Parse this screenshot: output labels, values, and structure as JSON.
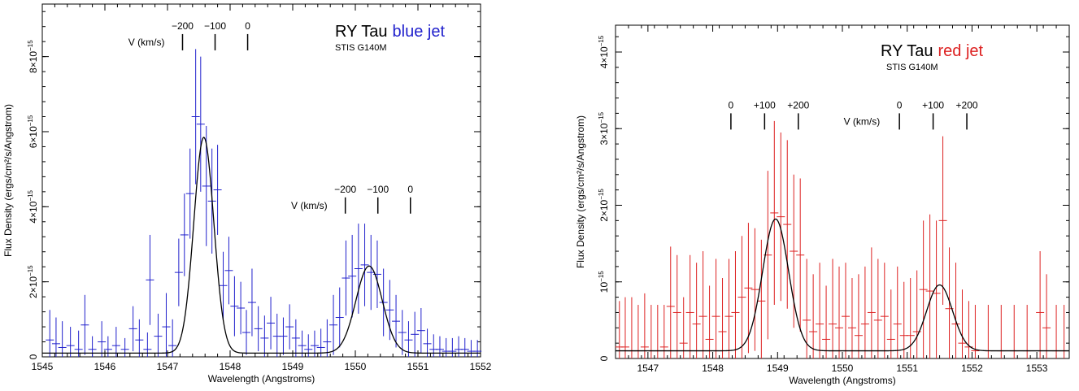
{
  "chart_data": [
    {
      "type": "scatter",
      "id": "left",
      "title_prefix": "RY Tau",
      "title_suffix": "blue jet",
      "subtitle": "STIS G140M",
      "xlabel": "Wavelength (Angstroms)",
      "ylabel": "Flux Density (ergs/cm²/s/Angstrom)",
      "xlim": [
        1545,
        1552
      ],
      "ylim": [
        0,
        9.4e-15
      ],
      "x_ticks": [
        1545,
        1546,
        1547,
        1548,
        1549,
        1550,
        1551,
        1552
      ],
      "x_tick_labels": [
        "1545",
        "1546",
        "1547",
        "1548",
        "1549",
        "1550",
        "1551",
        "1552"
      ],
      "y_ticks": [
        0,
        2e-15,
        4e-15,
        6e-15,
        8e-15
      ],
      "y_tick_labels": [
        {
          "mantissa": "0",
          "exp": ""
        },
        {
          "mantissa": "2×10",
          "exp": "−15"
        },
        {
          "mantissa": "4×10",
          "exp": "−15"
        },
        {
          "mantissa": "6×10",
          "exp": "−15"
        },
        {
          "mantissa": "8×10",
          "exp": "−15"
        }
      ],
      "color": "#2020cc",
      "model": {
        "baseline": 1e-16,
        "peaks": [
          {
            "center": 1547.58,
            "amp": 5.75e-15,
            "sigma": 0.16
          },
          {
            "center": 1550.22,
            "amp": 2.32e-15,
            "sigma": 0.21
          }
        ]
      },
      "velocity_markers": [
        {
          "label_text": "V (km/s)",
          "labels": [
            "−200",
            "−100",
            "0"
          ],
          "wavelengths": [
            1547.24,
            1547.76,
            1548.28
          ],
          "level": 8.6e-15
        },
        {
          "label_text": "V (km/s)",
          "labels": [
            "−200",
            "−100",
            "0"
          ],
          "wavelengths": [
            1549.84,
            1550.36,
            1550.88
          ],
          "level": 4.25e-15
        }
      ],
      "points": [
        {
          "x": 1545.12,
          "y": 4.5e-16,
          "err": 8e-16
        },
        {
          "x": 1545.22,
          "y": 3.5e-16,
          "err": 7e-16
        },
        {
          "x": 1545.32,
          "y": 2.5e-16,
          "err": 7e-16
        },
        {
          "x": 1545.45,
          "y": 3e-16,
          "err": 5e-16
        },
        {
          "x": 1545.58,
          "y": 2e-16,
          "err": 5e-16
        },
        {
          "x": 1545.68,
          "y": 8.5e-16,
          "err": 8e-16
        },
        {
          "x": 1545.8,
          "y": 2e-16,
          "err": 3.5e-16
        },
        {
          "x": 1545.95,
          "y": 4e-16,
          "err": 5.5e-16
        },
        {
          "x": 1546.05,
          "y": 2e-16,
          "err": 3.5e-16
        },
        {
          "x": 1546.18,
          "y": 3e-16,
          "err": 5e-16
        },
        {
          "x": 1546.32,
          "y": 2e-16,
          "err": 3e-16
        },
        {
          "x": 1546.45,
          "y": 7.5e-16,
          "err": 6e-16
        },
        {
          "x": 1546.55,
          "y": 4.5e-16,
          "err": 5.5e-16
        },
        {
          "x": 1546.68,
          "y": 2e-16,
          "err": 4.5e-16
        },
        {
          "x": 1546.72,
          "y": 2.05e-15,
          "err": 1.2e-15
        },
        {
          "x": 1546.85,
          "y": 5.5e-16,
          "err": 6e-16
        },
        {
          "x": 1546.98,
          "y": 8e-16,
          "err": 9e-16
        },
        {
          "x": 1547.08,
          "y": 3e-16,
          "err": 7e-16
        },
        {
          "x": 1547.18,
          "y": 2.25e-15,
          "err": 9e-16
        },
        {
          "x": 1547.27,
          "y": 3.25e-15,
          "err": 1.1e-15
        },
        {
          "x": 1547.36,
          "y": 4.35e-15,
          "err": 1.2e-15
        },
        {
          "x": 1547.45,
          "y": 6.4e-15,
          "err": 1.8e-15
        },
        {
          "x": 1547.53,
          "y": 6.2e-15,
          "err": 1.8e-15
        },
        {
          "x": 1547.62,
          "y": 4.55e-15,
          "err": 1.6e-15
        },
        {
          "x": 1547.71,
          "y": 4.15e-15,
          "err": 1.4e-15
        },
        {
          "x": 1547.8,
          "y": 4.45e-15,
          "err": 1.2e-15
        },
        {
          "x": 1547.89,
          "y": 1.9e-15,
          "err": 9e-16
        },
        {
          "x": 1547.98,
          "y": 2.3e-15,
          "err": 9e-16
        },
        {
          "x": 1548.07,
          "y": 1.35e-15,
          "err": 8e-16
        },
        {
          "x": 1548.17,
          "y": 1.3e-15,
          "err": 7e-16
        },
        {
          "x": 1548.26,
          "y": 6.5e-16,
          "err": 6e-16
        },
        {
          "x": 1548.35,
          "y": 1.45e-15,
          "err": 9e-16
        },
        {
          "x": 1548.45,
          "y": 7.5e-16,
          "err": 6e-16
        },
        {
          "x": 1548.55,
          "y": 5e-16,
          "err": 6e-16
        },
        {
          "x": 1548.65,
          "y": 9e-16,
          "err": 7e-16
        },
        {
          "x": 1548.75,
          "y": 5.5e-16,
          "err": 6e-16
        },
        {
          "x": 1548.85,
          "y": 5.5e-16,
          "err": 5e-16
        },
        {
          "x": 1548.95,
          "y": 8e-16,
          "err": 6e-16
        },
        {
          "x": 1549.05,
          "y": 5e-16,
          "err": 5e-16
        },
        {
          "x": 1549.15,
          "y": 3e-16,
          "err": 4e-16
        },
        {
          "x": 1549.25,
          "y": 2e-16,
          "err": 4e-16
        },
        {
          "x": 1549.35,
          "y": 3e-16,
          "err": 4e-16
        },
        {
          "x": 1549.45,
          "y": 2.5e-16,
          "err": 5e-16
        },
        {
          "x": 1549.55,
          "y": 4e-16,
          "err": 6e-16
        },
        {
          "x": 1549.65,
          "y": 8.5e-16,
          "err": 8e-16
        },
        {
          "x": 1549.75,
          "y": 1.05e-15,
          "err": 8e-16
        },
        {
          "x": 1549.85,
          "y": 2.1e-15,
          "err": 1e-15
        },
        {
          "x": 1549.95,
          "y": 2.15e-15,
          "err": 1.1e-15
        },
        {
          "x": 1550.05,
          "y": 2.35e-15,
          "err": 1.2e-15
        },
        {
          "x": 1550.15,
          "y": 2.45e-15,
          "err": 1.1e-15
        },
        {
          "x": 1550.25,
          "y": 2.25e-15,
          "err": 1e-15
        },
        {
          "x": 1550.35,
          "y": 2.2e-15,
          "err": 9e-16
        },
        {
          "x": 1550.45,
          "y": 1.45e-15,
          "err": 9e-16
        },
        {
          "x": 1550.55,
          "y": 1.25e-15,
          "err": 8e-16
        },
        {
          "x": 1550.65,
          "y": 9.5e-16,
          "err": 7e-16
        },
        {
          "x": 1550.75,
          "y": 6.5e-16,
          "err": 6e-16
        },
        {
          "x": 1550.85,
          "y": 4.5e-16,
          "err": 5e-16
        },
        {
          "x": 1550.95,
          "y": 6e-16,
          "err": 6e-16
        },
        {
          "x": 1551.05,
          "y": 7e-16,
          "err": 6e-16
        },
        {
          "x": 1551.15,
          "y": 3.5e-16,
          "err": 4e-16
        },
        {
          "x": 1551.25,
          "y": 2e-16,
          "err": 4e-16
        },
        {
          "x": 1551.35,
          "y": 2e-16,
          "err": 3.5e-16
        },
        {
          "x": 1551.45,
          "y": 1.5e-16,
          "err": 3.5e-16
        },
        {
          "x": 1551.55,
          "y": 1.5e-16,
          "err": 3.5e-16
        },
        {
          "x": 1551.65,
          "y": 2e-16,
          "err": 3.5e-16
        },
        {
          "x": 1551.75,
          "y": 2e-16,
          "err": 3e-16
        },
        {
          "x": 1551.85,
          "y": 1.5e-16,
          "err": 3e-16
        },
        {
          "x": 1551.95,
          "y": 1.5e-16,
          "err": 3e-16
        }
      ]
    },
    {
      "type": "scatter",
      "id": "right",
      "title_prefix": "RY Tau",
      "title_suffix": "red jet",
      "subtitle": "STIS G140M",
      "xlabel": "Wavelength (Angstroms)",
      "ylabel": "Flux Density (ergs/cm²/s/Angstrom)",
      "xlim": [
        1546.5,
        1553.5
      ],
      "ylim": [
        0,
        4.35e-15
      ],
      "x_ticks": [
        1547,
        1548,
        1549,
        1550,
        1551,
        1552,
        1553
      ],
      "x_tick_labels": [
        "1547",
        "1548",
        "1549",
        "1550",
        "1551",
        "1552",
        "1553"
      ],
      "y_ticks": [
        0,
        1e-15,
        2e-15,
        3e-15,
        4e-15
      ],
      "y_tick_labels": [
        {
          "mantissa": "0",
          "exp": ""
        },
        {
          "mantissa": "10",
          "exp": "−15"
        },
        {
          "mantissa": "2×10",
          "exp": "−15"
        },
        {
          "mantissa": "3×10",
          "exp": "−15"
        },
        {
          "mantissa": "4×10",
          "exp": "−15"
        }
      ],
      "color": "#dd2222",
      "model": {
        "baseline": 1e-16,
        "peaks": [
          {
            "center": 1548.97,
            "amp": 1.72e-15,
            "sigma": 0.2
          },
          {
            "center": 1551.5,
            "amp": 8.6e-16,
            "sigma": 0.2
          }
        ]
      },
      "velocity_markers": [
        {
          "label_text": "V (km/s)",
          "labels": [
            "0",
            "+100",
            "+200"
          ],
          "wavelengths": [
            1548.28,
            1548.8,
            1549.32
          ],
          "level": 3.2e-15,
          "label_wavelength": 1550.3
        },
        {
          "label_text": "",
          "labels": [
            "0",
            "+100",
            "+200"
          ],
          "wavelengths": [
            1550.88,
            1551.4,
            1551.92
          ],
          "level": 3.2e-15
        }
      ],
      "points": [
        {
          "x": 1546.56,
          "y": 1.5e-16,
          "err": 6e-16
        },
        {
          "x": 1546.65,
          "y": 1.5e-16,
          "err": 6.5e-16
        },
        {
          "x": 1546.75,
          "y": 1e-16,
          "err": 7e-16
        },
        {
          "x": 1546.85,
          "y": 1e-16,
          "err": 6e-16
        },
        {
          "x": 1546.95,
          "y": 1.5e-16,
          "err": 7e-16
        },
        {
          "x": 1547.05,
          "y": 1e-16,
          "err": 6e-16
        },
        {
          "x": 1547.15,
          "y": 1e-16,
          "err": 6e-16
        },
        {
          "x": 1547.25,
          "y": 1.5e-16,
          "err": 5.5e-16
        },
        {
          "x": 1547.35,
          "y": 6.8e-16,
          "err": 7.8e-16
        },
        {
          "x": 1547.45,
          "y": 6e-16,
          "err": 7.5e-16
        },
        {
          "x": 1547.55,
          "y": 2e-16,
          "err": 6e-16
        },
        {
          "x": 1547.65,
          "y": 6e-16,
          "err": 7.5e-16
        },
        {
          "x": 1547.75,
          "y": 4.5e-16,
          "err": 8e-16
        },
        {
          "x": 1547.85,
          "y": 5.5e-16,
          "err": 8.5e-16
        },
        {
          "x": 1547.95,
          "y": 2.5e-16,
          "err": 7e-16
        },
        {
          "x": 1548.05,
          "y": 5.5e-16,
          "err": 7.5e-16
        },
        {
          "x": 1548.15,
          "y": 3.5e-16,
          "err": 7e-16
        },
        {
          "x": 1548.25,
          "y": 5.5e-16,
          "err": 7.5e-16
        },
        {
          "x": 1548.35,
          "y": 6e-16,
          "err": 8e-16
        },
        {
          "x": 1548.45,
          "y": 8e-16,
          "err": 8e-16
        },
        {
          "x": 1548.55,
          "y": 9.2e-16,
          "err": 8.5e-16
        },
        {
          "x": 1548.65,
          "y": 9e-16,
          "err": 8e-16
        },
        {
          "x": 1548.75,
          "y": 7.5e-16,
          "err": 8e-16
        },
        {
          "x": 1548.85,
          "y": 1.35e-15,
          "err": 1.1e-15
        },
        {
          "x": 1548.95,
          "y": 1.9e-15,
          "err": 1.2e-15
        },
        {
          "x": 1549.05,
          "y": 1.85e-15,
          "err": 1.1e-15
        },
        {
          "x": 1549.15,
          "y": 1.75e-15,
          "err": 1.1e-15
        },
        {
          "x": 1549.25,
          "y": 1.4e-15,
          "err": 1e-15
        },
        {
          "x": 1549.35,
          "y": 1.35e-15,
          "err": 1e-15
        },
        {
          "x": 1549.45,
          "y": 5e-16,
          "err": 8e-16
        },
        {
          "x": 1549.55,
          "y": 3.5e-16,
          "err": 7.5e-16
        },
        {
          "x": 1549.65,
          "y": 4.5e-16,
          "err": 8e-16
        },
        {
          "x": 1549.75,
          "y": 2.5e-16,
          "err": 7e-16
        },
        {
          "x": 1549.85,
          "y": 4.5e-16,
          "err": 8.5e-16
        },
        {
          "x": 1549.95,
          "y": 4e-16,
          "err": 8e-16
        },
        {
          "x": 1550.05,
          "y": 5.5e-16,
          "err": 7e-16
        },
        {
          "x": 1550.15,
          "y": 4e-16,
          "err": 6.5e-16
        },
        {
          "x": 1550.25,
          "y": 3e-16,
          "err": 8e-16
        },
        {
          "x": 1550.35,
          "y": 4.5e-16,
          "err": 7.5e-16
        },
        {
          "x": 1550.45,
          "y": 6e-16,
          "err": 8.5e-16
        },
        {
          "x": 1550.55,
          "y": 5e-16,
          "err": 8e-16
        },
        {
          "x": 1550.65,
          "y": 5.5e-16,
          "err": 7e-16
        },
        {
          "x": 1550.75,
          "y": 2.5e-16,
          "err": 6.5e-16
        },
        {
          "x": 1550.85,
          "y": 4.5e-16,
          "err": 7.5e-16
        },
        {
          "x": 1550.95,
          "y": 3e-16,
          "err": 7e-16
        },
        {
          "x": 1551.05,
          "y": 3e-16,
          "err": 7.5e-16
        },
        {
          "x": 1551.15,
          "y": 3.5e-16,
          "err": 8e-16
        },
        {
          "x": 1551.25,
          "y": 9e-16,
          "err": 9e-16
        },
        {
          "x": 1551.35,
          "y": 8.8e-16,
          "err": 1e-15
        },
        {
          "x": 1551.45,
          "y": 8.5e-16,
          "err": 9.5e-16
        },
        {
          "x": 1551.55,
          "y": 1.8e-15,
          "err": 1.1e-15
        },
        {
          "x": 1551.65,
          "y": 6.5e-16,
          "err": 8e-16
        },
        {
          "x": 1551.75,
          "y": 4.5e-16,
          "err": 8e-16
        },
        {
          "x": 1551.85,
          "y": 2e-16,
          "err": 7e-16
        },
        {
          "x": 1551.95,
          "y": 1.5e-16,
          "err": 6e-16
        },
        {
          "x": 1552.05,
          "y": 1e-16,
          "err": 6e-16
        },
        {
          "x": 1552.25,
          "y": 1e-16,
          "err": 6e-16
        },
        {
          "x": 1552.45,
          "y": 1e-16,
          "err": 6e-16
        },
        {
          "x": 1552.65,
          "y": 1e-16,
          "err": 6e-16
        },
        {
          "x": 1552.85,
          "y": 1e-16,
          "err": 6e-16
        },
        {
          "x": 1553.05,
          "y": 6e-16,
          "err": 8e-16
        },
        {
          "x": 1553.15,
          "y": 4e-16,
          "err": 7e-16
        },
        {
          "x": 1553.3,
          "y": 1e-16,
          "err": 6e-16
        },
        {
          "x": 1553.42,
          "y": 1e-16,
          "err": 6e-16
        }
      ]
    }
  ]
}
